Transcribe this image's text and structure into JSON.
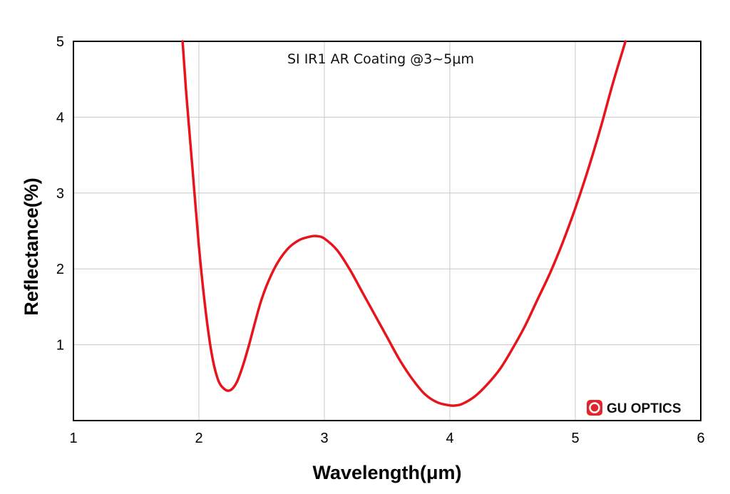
{
  "chart_data": {
    "type": "line",
    "title": "SI IR1 AR Coating @3~5μm",
    "xlabel": "Wavelength(μm)",
    "ylabel": "Reflectance(%)",
    "xlim": [
      1,
      6
    ],
    "ylim": [
      0,
      5
    ],
    "x_ticks": [
      "1",
      "2",
      "3",
      "4",
      "5",
      "6"
    ],
    "y_ticks": [
      "1",
      "2",
      "3",
      "4",
      "5"
    ],
    "grid": true,
    "line_color": "#e8141c",
    "series": [
      {
        "x": [
          1.87,
          1.9,
          1.95,
          2.0,
          2.05,
          2.1,
          2.15,
          2.2,
          2.25,
          2.3,
          2.35,
          2.4,
          2.5,
          2.6,
          2.7,
          2.8,
          2.9,
          2.95,
          3.0,
          3.1,
          3.2,
          3.3,
          3.4,
          3.5,
          3.6,
          3.7,
          3.8,
          3.9,
          4.0,
          4.05,
          4.1,
          4.2,
          4.3,
          4.4,
          4.5,
          4.6,
          4.7,
          4.8,
          4.9,
          5.0,
          5.1,
          5.2,
          5.3,
          5.4
        ],
        "y": [
          5.0,
          4.3,
          3.3,
          2.3,
          1.5,
          0.9,
          0.55,
          0.42,
          0.4,
          0.5,
          0.72,
          1.0,
          1.6,
          2.0,
          2.25,
          2.38,
          2.43,
          2.43,
          2.4,
          2.25,
          2.0,
          1.7,
          1.4,
          1.1,
          0.8,
          0.55,
          0.35,
          0.24,
          0.2,
          0.2,
          0.22,
          0.32,
          0.48,
          0.68,
          0.95,
          1.25,
          1.6,
          1.95,
          2.35,
          2.8,
          3.3,
          3.85,
          4.45,
          5.0
        ]
      }
    ],
    "logo_text": "GU OPTICS",
    "logo_color": "#e3242b"
  }
}
